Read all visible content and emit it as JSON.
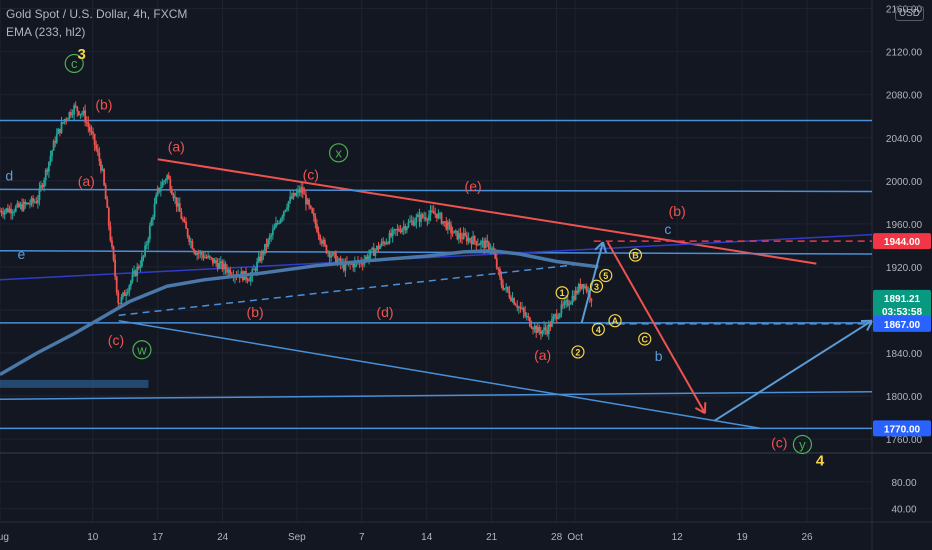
{
  "header": {
    "symbol_line": "Gold Spot / U.S. Dollar, 4h, FXCM",
    "indicator_line": "EMA (233, hl2)",
    "currency": "USD"
  },
  "chart_data": {
    "type": "candlestick",
    "title": "Gold Spot / U.S. Dollar, 4h, FXCM",
    "indicator": "EMA (233, hl2)",
    "price_axis": {
      "ticks": [
        2160,
        2120,
        2080,
        2040,
        2000,
        1960,
        1920,
        1880,
        1840,
        1800,
        1760
      ],
      "range": [
        1748,
        2168
      ]
    },
    "oscillator_axis": {
      "ticks": [
        80,
        40
      ],
      "range": [
        20,
        120
      ]
    },
    "time_axis": {
      "ticks": [
        "Aug",
        "10",
        "17",
        "24",
        "Sep",
        "7",
        "14",
        "21",
        "28",
        "Oct",
        "12",
        "19",
        "26"
      ],
      "tick_days": [
        0,
        10,
        17,
        24,
        32,
        39,
        46,
        53,
        60,
        62,
        73,
        80,
        87
      ],
      "range_days": [
        0,
        94
      ]
    },
    "price_labels": [
      {
        "value": "1944.00",
        "price": 1944,
        "color": "#f23645"
      },
      {
        "value": "1891.21",
        "price": 1891.21,
        "color": "#089981"
      },
      {
        "value": "03:53:58",
        "price": 1879,
        "color": "#089981"
      },
      {
        "value": "1867.00",
        "price": 1867,
        "color": "#2962ff"
      },
      {
        "value": "1770.00",
        "price": 1770,
        "color": "#2962ff"
      }
    ],
    "close_path": [
      [
        0,
        1972
      ],
      [
        2,
        1975
      ],
      [
        4,
        1982
      ],
      [
        5,
        2010
      ],
      [
        6,
        2040
      ],
      [
        7,
        2058
      ],
      [
        8,
        2068
      ],
      [
        9,
        2062
      ],
      [
        10,
        2040
      ],
      [
        11,
        2010
      ],
      [
        12,
        1940
      ],
      [
        12.8,
        1885
      ],
      [
        14,
        1905
      ],
      [
        15.5,
        1930
      ],
      [
        17,
        1990
      ],
      [
        18,
        2005
      ],
      [
        19,
        1980
      ],
      [
        20,
        1955
      ],
      [
        21,
        1935
      ],
      [
        23,
        1925
      ],
      [
        25,
        1915
      ],
      [
        27,
        1910
      ],
      [
        29,
        1945
      ],
      [
        31,
        1980
      ],
      [
        32.5,
        1992
      ],
      [
        34,
        1960
      ],
      [
        35,
        1938
      ],
      [
        37,
        1920
      ],
      [
        39,
        1925
      ],
      [
        41,
        1940
      ],
      [
        43,
        1955
      ],
      [
        45,
        1965
      ],
      [
        47,
        1970
      ],
      [
        49,
        1950
      ],
      [
        51,
        1945
      ],
      [
        53,
        1938
      ],
      [
        54,
        1905
      ],
      [
        56,
        1882
      ],
      [
        57,
        1870
      ],
      [
        58,
        1860
      ],
      [
        59,
        1862
      ],
      [
        60,
        1876
      ],
      [
        61,
        1885
      ],
      [
        62,
        1895
      ],
      [
        62.8,
        1906
      ],
      [
        63.8,
        1891
      ]
    ],
    "ema_path": [
      [
        0,
        1820
      ],
      [
        4,
        1840
      ],
      [
        8,
        1858
      ],
      [
        12,
        1878
      ],
      [
        14,
        1888
      ],
      [
        18,
        1902
      ],
      [
        22,
        1908
      ],
      [
        28,
        1914
      ],
      [
        34,
        1921
      ],
      [
        40,
        1926
      ],
      [
        46,
        1930
      ],
      [
        50,
        1934
      ],
      [
        53,
        1935
      ],
      [
        56,
        1932
      ],
      [
        60,
        1925
      ],
      [
        64.5,
        1920
      ]
    ],
    "trend_lines": [
      {
        "from": [
          17,
          2020
        ],
        "to": [
          88,
          1923
        ],
        "color": "#ef5350",
        "style": "solid"
      },
      {
        "from": [
          12.8,
          1870
        ],
        "to": [
          82,
          1770
        ],
        "color": "#4a90d9",
        "style": "solid"
      },
      {
        "from": [
          0,
          2056
        ],
        "to": [
          94,
          2056
        ],
        "color": "#4a90d9",
        "style": "solid"
      },
      {
        "from": [
          0,
          1992
        ],
        "to": [
          94,
          1990
        ],
        "color": "#4a90d9",
        "style": "solid"
      },
      {
        "from": [
          0,
          1935
        ],
        "to": [
          94,
          1932
        ],
        "color": "#4a90d9",
        "style": "solid"
      },
      {
        "from": [
          0,
          1868
        ],
        "to": [
          94,
          1868
        ],
        "color": "#4a90d9",
        "style": "solid"
      },
      {
        "from": [
          0,
          1797
        ],
        "to": [
          94,
          1804
        ],
        "color": "#4a90d9",
        "style": "solid"
      },
      {
        "from": [
          0,
          1770
        ],
        "to": [
          94,
          1770
        ],
        "color": "#4a90d9",
        "style": "solid"
      },
      {
        "from": [
          0,
          1908
        ],
        "to": [
          94,
          1950
        ],
        "color": "#2f3cc9",
        "style": "solid"
      },
      {
        "from": [
          12.8,
          1875
        ],
        "to": [
          62,
          1922
        ],
        "color": "#4a90d9",
        "style": "dashed"
      },
      {
        "from": [
          64,
          1944
        ],
        "to": [
          94,
          1944
        ],
        "color": "#f23645",
        "style": "dashed"
      },
      {
        "from": [
          64,
          1867
        ],
        "to": [
          94,
          1867
        ],
        "color": "#4a90d9",
        "style": "dashed"
      }
    ],
    "projection_arrows": [
      {
        "from": [
          62.7,
          1868
        ],
        "to": [
          65,
          1943
        ],
        "color": "#5b9bd5"
      },
      {
        "from": [
          65.5,
          1943
        ],
        "to": [
          76,
          1784
        ],
        "color": "#ef5350"
      },
      {
        "from": [
          77,
          1777
        ],
        "to": [
          94,
          1870
        ],
        "color": "#5b9bd5"
      }
    ],
    "annotations": [
      {
        "text": "c",
        "day": 8,
        "price": 2109,
        "color": "#4caf50",
        "circle": true
      },
      {
        "text": "3",
        "day": 8.8,
        "price": 2118,
        "color": "#f5d547"
      },
      {
        "text": "(b)",
        "day": 11.2,
        "price": 2071,
        "color": "#ef5350"
      },
      {
        "text": "(a)",
        "day": 9.3,
        "price": 2000,
        "color": "#ef5350"
      },
      {
        "text": "d",
        "day": 1,
        "price": 2005,
        "color": "#5b9bd5"
      },
      {
        "text": "e",
        "day": 2.3,
        "price": 1932,
        "color": "#5b9bd5"
      },
      {
        "text": "(c)",
        "day": 12.5,
        "price": 1852,
        "color": "#ef5350"
      },
      {
        "text": "w",
        "day": 15.3,
        "price": 1843,
        "color": "#4caf50",
        "circle": true
      },
      {
        "text": "(a)",
        "day": 19,
        "price": 2032,
        "color": "#ef5350"
      },
      {
        "text": "x",
        "day": 36.5,
        "price": 2026,
        "color": "#4caf50",
        "circle": true
      },
      {
        "text": "(c)",
        "day": 33.5,
        "price": 2006,
        "color": "#ef5350"
      },
      {
        "text": "(b)",
        "day": 27.5,
        "price": 1878,
        "color": "#ef5350"
      },
      {
        "text": "(e)",
        "day": 51,
        "price": 1995,
        "color": "#ef5350"
      },
      {
        "text": "(d)",
        "day": 41.5,
        "price": 1878,
        "color": "#ef5350"
      },
      {
        "text": "(a)",
        "day": 58.5,
        "price": 1838,
        "color": "#ef5350"
      },
      {
        "text": "1",
        "day": 60.6,
        "price": 1896,
        "color": "#f5d547",
        "circle": true
      },
      {
        "text": "2",
        "day": 62.3,
        "price": 1841,
        "color": "#f5d547",
        "circle": true
      },
      {
        "text": "3",
        "day": 64.3,
        "price": 1902,
        "color": "#f5d547",
        "circle": true
      },
      {
        "text": "4",
        "day": 64.5,
        "price": 1862,
        "color": "#f5d547",
        "circle": true
      },
      {
        "text": "5",
        "day": 65.3,
        "price": 1912,
        "color": "#f5d547",
        "circle": true
      },
      {
        "text": "A",
        "day": 66.3,
        "price": 1870,
        "color": "#f5d547",
        "circle": true
      },
      {
        "text": "B",
        "day": 68.5,
        "price": 1931,
        "color": "#f5d547",
        "circle": true
      },
      {
        "text": "C",
        "day": 69.5,
        "price": 1853,
        "color": "#f5d547",
        "circle": true
      },
      {
        "text": "b",
        "day": 71,
        "price": 1837,
        "color": "#5b9bd5"
      },
      {
        "text": "c",
        "day": 72,
        "price": 1955,
        "color": "#5b9bd5"
      },
      {
        "text": "(b)",
        "day": 73,
        "price": 1972,
        "color": "#ef5350"
      },
      {
        "text": "(c)",
        "day": 84,
        "price": 1757,
        "color": "#ef5350"
      },
      {
        "text": "y",
        "day": 86.5,
        "price": 1755,
        "color": "#4caf50",
        "circle": true
      },
      {
        "text": "4",
        "day": 88.4,
        "price": 1740,
        "color": "#f5d547"
      }
    ]
  }
}
